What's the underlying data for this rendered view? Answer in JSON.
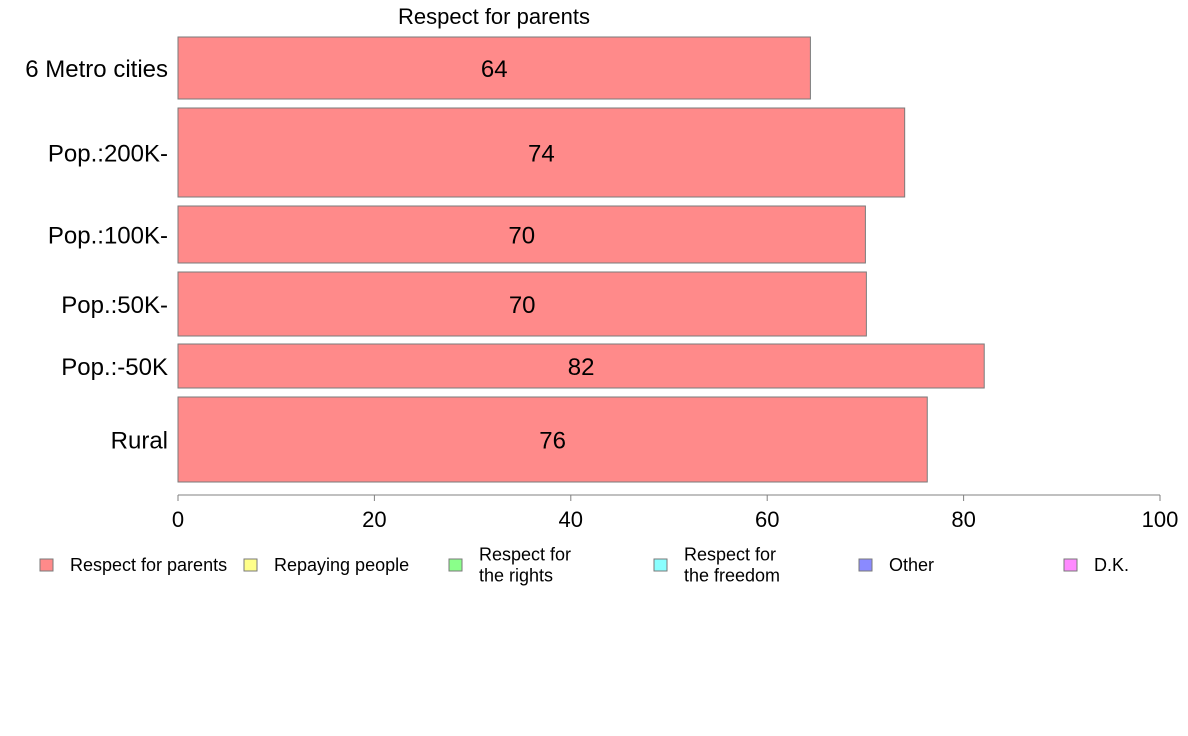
{
  "chart_data": {
    "type": "bar",
    "orientation": "horizontal",
    "title": "Respect for parents",
    "categories": [
      "6 Metro cities",
      "Pop.:200K-",
      "Pop.:100K-",
      "Pop.:50K-",
      "Pop.:-50K",
      "Rural"
    ],
    "series": [
      {
        "name": "Respect for parents",
        "color": "#ff8a8a",
        "values": [
          64.4,
          74.0,
          70.0,
          70.1,
          82.1,
          76.3
        ],
        "labels": [
          "64",
          "74",
          "70",
          "70",
          "82",
          "76"
        ]
      }
    ],
    "xlim": [
      0,
      100
    ],
    "xticks": [
      0,
      20,
      40,
      60,
      80,
      100
    ],
    "xtick_labels": [
      "0",
      "20",
      "40",
      "60",
      "80",
      "100"
    ],
    "xlabel": "",
    "ylabel": "",
    "grid": false,
    "legend": {
      "placement": "bottom",
      "items": [
        {
          "lines": [
            "Respect for parents"
          ],
          "color": "#ff8a8a"
        },
        {
          "lines": [
            "Repaying people"
          ],
          "color": "#ffff8a"
        },
        {
          "lines": [
            "Respect for",
            "the rights"
          ],
          "color": "#8aff8a"
        },
        {
          "lines": [
            "Respect for",
            "the freedom"
          ],
          "color": "#8affff"
        },
        {
          "lines": [
            "Other"
          ],
          "color": "#8a8aff"
        },
        {
          "lines": [
            "D.K."
          ],
          "color": "#ff8aff"
        }
      ]
    }
  }
}
